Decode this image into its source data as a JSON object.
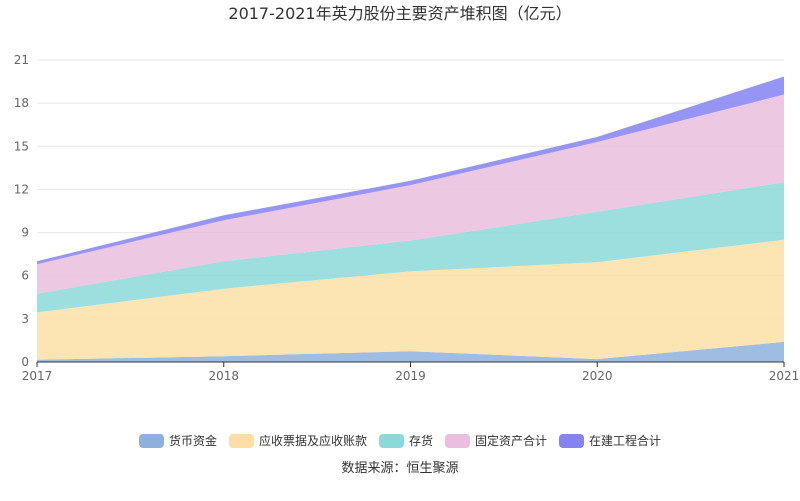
{
  "chart_data": {
    "type": "area",
    "stacked": true,
    "title": "2017-2021年英力股份主要资产堆积图（亿元）",
    "x": [
      "2017",
      "2018",
      "2019",
      "2020",
      "2021"
    ],
    "ylim": [
      0,
      21
    ],
    "yticks": [
      0,
      3,
      6,
      9,
      12,
      15,
      18,
      21
    ],
    "grid": true,
    "legend_position": "bottom",
    "series": [
      {
        "name": "货币资金",
        "color": "#8eb0de",
        "values": [
          0.15,
          0.4,
          0.75,
          0.2,
          1.4
        ]
      },
      {
        "name": "应收票据及应收账款",
        "color": "#fddfa6",
        "values": [
          3.3,
          4.7,
          5.55,
          6.75,
          7.1
        ]
      },
      {
        "name": "存货",
        "color": "#8cd9d9",
        "values": [
          1.3,
          1.9,
          2.15,
          3.5,
          4.0
        ]
      },
      {
        "name": "固定资产合计",
        "color": "#e9bede",
        "values": [
          2.05,
          2.85,
          3.85,
          4.85,
          6.1
        ]
      },
      {
        "name": "在建工程合计",
        "color": "#8582f2",
        "values": [
          0.2,
          0.35,
          0.3,
          0.35,
          1.25
        ]
      }
    ],
    "source": "数据来源：恒生聚源"
  }
}
